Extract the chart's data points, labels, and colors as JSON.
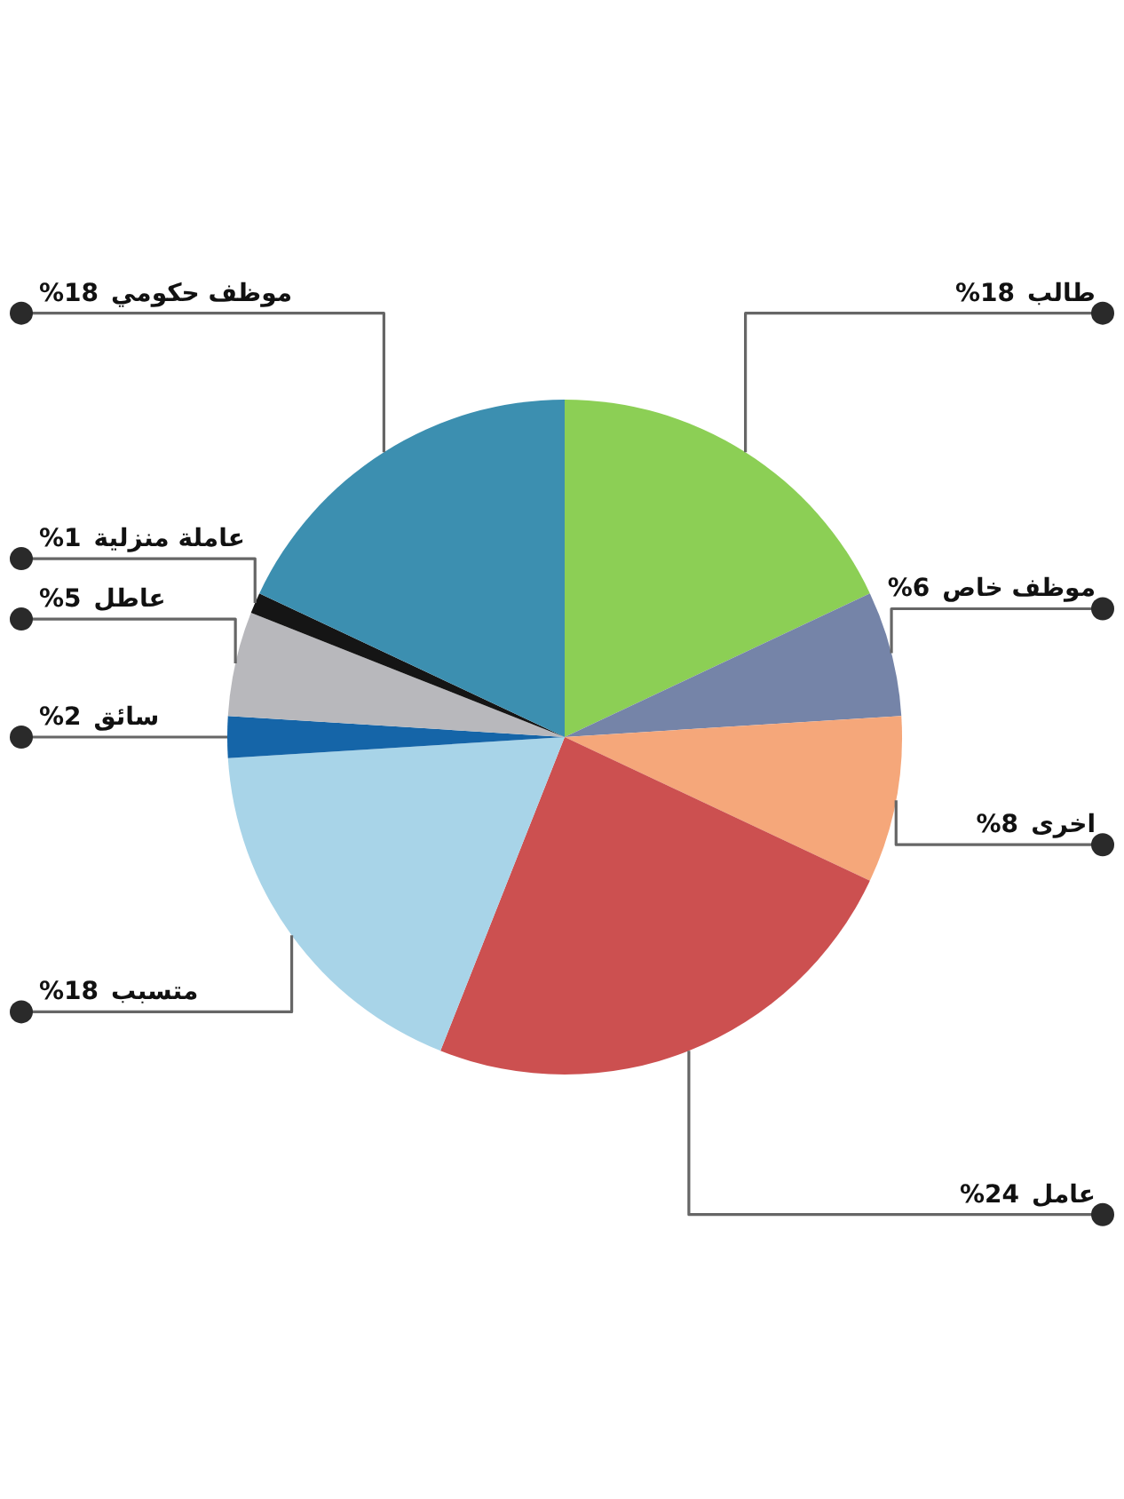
{
  "chart_data": {
    "type": "pie",
    "categories": [
      "طالب",
      "موظف خاص",
      "اخرى",
      "عامل",
      "متسبب",
      "سائق",
      "عاطل",
      "عاملة منزلية",
      "موظف حكومي"
    ],
    "values": [
      18,
      6,
      8,
      24,
      18,
      2,
      5,
      1,
      18
    ],
    "value_labels": [
      "%18",
      "%6",
      "%8",
      "%24",
      "%18",
      "%2",
      "%5",
      "%1",
      "%18"
    ],
    "colors": [
      "#8ccf55",
      "#7584a8",
      "#f5a77a",
      "#cc5050",
      "#a8d4e8",
      "#1565a8",
      "#b8b8bc",
      "#151515",
      "#3c8fb0"
    ],
    "data_labels": true
  }
}
